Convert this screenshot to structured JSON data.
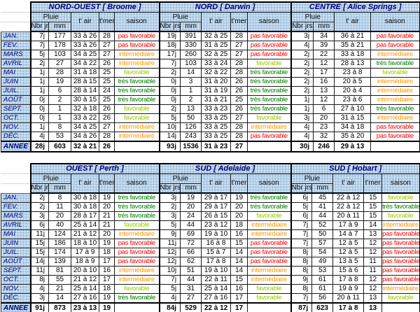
{
  "colors": {
    "header_bg": "#b4d1ea",
    "header_text": "#00007f",
    "saison": {
      "pas favorable": "#ff0000",
      "intermédiaire": "#ff9900",
      "favorable": "#99cc00",
      "très favorable": "#008000"
    }
  },
  "chart_data": {
    "type": "table",
    "months": [
      "JAN.",
      "FEV.",
      "MARS",
      "AVRIL",
      "MAI",
      "JUIN",
      "JUIL.",
      "AOÛT",
      "SEPT.",
      "OCT.",
      "NOV.",
      "DÉC."
    ],
    "year_label": "ANNEE",
    "column_headers": {
      "pluie": "Pluie",
      "nbr_jrs": "Nbr jrs",
      "mm": "mm",
      "t_air": "t' air",
      "t_mer": "t'mer",
      "saison": "saison"
    },
    "blocks": [
      {
        "tables": [
          {
            "title": "NORD-OUEST [ Broome ]",
            "has_tmer": true,
            "rows": [
              [
                "7j",
                "177",
                "33 à 26",
                "28",
                "pas favorable"
              ],
              [
                "7j",
                "178",
                "33 à 26",
                "27",
                "pas favorable"
              ],
              [
                "5j",
                "103",
                "34 à 25",
                "27",
                "intermédiaire"
              ],
              [
                "2j",
                "27",
                "34 à 22",
                "26",
                "intermédiaire"
              ],
              [
                "1j",
                "28",
                "31 à 18",
                "25",
                "favorable"
              ],
              [
                "1j",
                "19",
                "28 à 15",
                "25",
                "très favorable"
              ],
              [
                "1j",
                "6",
                "28 à 14",
                "24",
                "très favorable"
              ],
              [
                "0j",
                "2",
                "30 à 15",
                "25",
                "très favorable"
              ],
              [
                "0j",
                "1",
                "32 à 18",
                "26",
                "favorable"
              ],
              [
                "0j",
                "1",
                "33 à 22",
                "26",
                "favorable"
              ],
              [
                "1j",
                "8",
                "34 à 25",
                "27",
                "intermédiaire"
              ],
              [
                "4j",
                "53",
                "34 à 26",
                "28",
                "intermédiaire"
              ]
            ],
            "year": [
              "28j",
              "603",
              "32 à 21",
              "26",
              ""
            ]
          },
          {
            "title": "NORD [ Darwin ]",
            "has_tmer": true,
            "rows": [
              [
                "19j",
                "391",
                "32 à 25",
                "28",
                "pas favorable"
              ],
              [
                "18j",
                "330",
                "31 à 25",
                "27",
                "pas favorable"
              ],
              [
                "17j",
                "260",
                "32 à 25",
                "27",
                "pas favorable"
              ],
              [
                "7j",
                "103",
                "33 à 24",
                "28",
                "favorable"
              ],
              [
                "2j",
                "14",
                "32 à 22",
                "28",
                "très favorable"
              ],
              [
                "0j",
                "3",
                "31 à 20",
                "26",
                "très favorable"
              ],
              [
                "0j",
                "1",
                "31 à 19",
                "26",
                "très favorable"
              ],
              [
                "0j",
                "2",
                "31 à 21",
                "25",
                "très favorable"
              ],
              [
                "2j",
                "13",
                "33 à 23",
                "26",
                "très favorable"
              ],
              [
                "5j",
                "50",
                "33 à 25",
                "27",
                "favorable"
              ],
              [
                "10j",
                "126",
                "33 à 25",
                "28",
                "intermédiaire"
              ],
              [
                "14j",
                "243",
                "33 à 25",
                "28",
                "pas favorable"
              ]
            ],
            "year": [
              "93j",
              "1536",
              "31 à 23",
              "27",
              ""
            ]
          },
          {
            "title": "CENTRE [ Alice Springs ]",
            "has_tmer": false,
            "rows": [
              [
                "3j",
                "34",
                "36 à 21",
                "pas favorable"
              ],
              [
                "4j",
                "39",
                "35 à 21",
                "pas favorable"
              ],
              [
                "2j",
                "22",
                "33 à 18",
                "intermédiaire"
              ],
              [
                "2j",
                "12",
                "28 à 13",
                "très favorable"
              ],
              [
                "2j",
                "17",
                "23 à 8",
                "favorable"
              ],
              [
                "2j",
                "16",
                "20 à 5",
                "intermédiaire"
              ],
              [
                "2j",
                "13",
                "20 à 4",
                "intermédiaire"
              ],
              [
                "1j",
                "12",
                "23 à 6",
                "intermédiaire"
              ],
              [
                "1j",
                "6",
                "27 à 10",
                "très favorable"
              ],
              [
                "3j",
                "20",
                "31 à 15",
                "intermédiaire"
              ],
              [
                "4j",
                "23",
                "34 à 18",
                "pas favorable"
              ],
              [
                "4j",
                "32",
                "35 à 20",
                "pas favorable"
              ]
            ],
            "year": [
              "30j",
              "246",
              "29 à 13",
              ""
            ]
          }
        ]
      },
      {
        "tables": [
          {
            "title": "OUEST [ Perth ]",
            "has_tmer": true,
            "rows": [
              [
                "2j",
                "8",
                "30 à 18",
                "19",
                "très favorable"
              ],
              [
                "2j",
                "11",
                "30 à 18",
                "20",
                "très favorable"
              ],
              [
                "3j",
                "20",
                "28 à 17",
                "21",
                "très favorable"
              ],
              [
                "6j",
                "40",
                "25 à 14",
                "21",
                "favorable"
              ],
              [
                "11j",
                "124",
                "21 à 12",
                "20",
                "intermédiaire"
              ],
              [
                "15j",
                "186",
                "18 à 10",
                "19",
                "pas favorable"
              ],
              [
                "15j",
                "174",
                "17 à 9",
                "18",
                "pas favorable"
              ],
              [
                "14j",
                "139",
                "18 à 9",
                "17",
                "pas favorable"
              ],
              [
                "11j",
                "81",
                "20 à 10",
                "16",
                "intermédiaire"
              ],
              [
                "8j",
                "55",
                "21 à 12",
                "17",
                "intermédiaire"
              ],
              [
                "4j",
                "21",
                "25 à 14",
                "18",
                "favorable"
              ],
              [
                "3j",
                "14",
                "27 à 16",
                "19",
                "très favorable"
              ]
            ],
            "year": [
              "91j",
              "873",
              "23 à 13",
              "19",
              ""
            ]
          },
          {
            "title": "SUD [ Adelaide ]",
            "has_tmer": true,
            "rows": [
              [
                "3j",
                "19",
                "29 à 17",
                "19",
                "très favorable"
              ],
              [
                "2j",
                "20",
                "29 à 17",
                "20",
                "très favorable"
              ],
              [
                "3j",
                "24",
                "26 à 15",
                "20",
                "favorable"
              ],
              [
                "5j",
                "44",
                "23 à 12",
                "18",
                "intermédiaire"
              ],
              [
                "9j",
                "69",
                "19 à 10",
                "16",
                "intermédiaire"
              ],
              [
                "11j",
                "72",
                "16 à 8",
                "15",
                "pas favorable"
              ],
              [
                "12j",
                "66",
                "15 à 7",
                "14",
                "pas favorable"
              ],
              [
                "12j",
                "62",
                "17 à 8",
                "14",
                "pas favorable"
              ],
              [
                "10j",
                "51",
                "19 à 10",
                "14",
                "intermédiaire"
              ],
              [
                "7j",
                "44",
                "22 à 11",
                "15",
                "intermédiaire"
              ],
              [
                "5j",
                "31",
                "25 à 14",
                "16",
                "favorable"
              ],
              [
                "4j",
                "27",
                "27 à 16",
                "17",
                "favorable"
              ]
            ],
            "year": [
              "84j",
              "529",
              "22 à 12",
              "17",
              ""
            ]
          },
          {
            "title": "SUD [ Hobart ]",
            "has_tmer": true,
            "rows": [
              [
                "6j",
                "45",
                "22 à 12",
                "15",
                "favorable"
              ],
              [
                "5j",
                "41",
                "22 à 12",
                "15",
                "très favorable"
              ],
              [
                "6j",
                "44",
                "20 à 11",
                "15",
                "favorable"
              ],
              [
                "7j",
                "52",
                "17 à 9",
                "14",
                "intermédiaire"
              ],
              [
                "7j",
                "50",
                "14 à 7",
                "13",
                "pas favorable"
              ],
              [
                "7j",
                "57",
                "12 à 5",
                "12",
                "pas favorable"
              ],
              [
                "8j",
                "54",
                "12 à 5",
                "12",
                "pas favorable"
              ],
              [
                "8j",
                "49",
                "13 à 5",
                "11",
                "pas favorable"
              ],
              [
                "8j",
                "53",
                "15 à 6",
                "11",
                "pas favorable"
              ],
              [
                "9j",
                "61",
                "17 à 8",
                "12",
                "pas favorable"
              ],
              [
                "8j",
                "61",
                "19 à 9",
                "12",
                "intermédiaire"
              ],
              [
                "7j",
                "56",
                "20 à 11",
                "13",
                "favorable"
              ]
            ],
            "year": [
              "87j",
              "623",
              "17 à 8",
              "13",
              ""
            ]
          }
        ]
      }
    ]
  }
}
